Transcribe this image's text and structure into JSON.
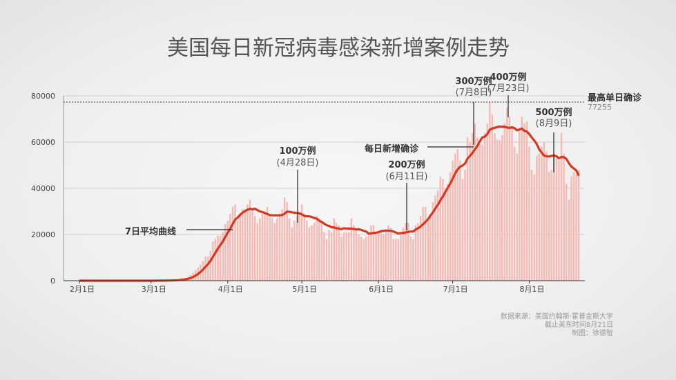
{
  "chart_data": {
    "type": "bar",
    "title": "美国每日新冠病毒感染新增案例走势",
    "start_date": "2020-02-01",
    "ylim": [
      0,
      80000
    ],
    "yticks": [
      0,
      20000,
      40000,
      60000,
      80000
    ],
    "ytick_labels": [
      "0",
      "20000",
      "40000",
      "60000",
      "80000"
    ],
    "xtick_labels": [
      "2月1日",
      "3月1日",
      "4月1日",
      "5月1日",
      "6月1日",
      "7月1日",
      "8月1日"
    ],
    "grid": true,
    "colors": {
      "bars": "#f7b9b4",
      "line": "#d7371f"
    },
    "series": [
      {
        "type": "bar",
        "values": [
          0,
          0,
          0,
          0,
          0,
          0,
          0,
          0,
          0,
          0,
          0,
          0,
          0,
          0,
          0,
          0,
          0,
          0,
          0,
          0,
          0,
          0,
          0,
          0,
          0,
          0,
          0,
          0,
          0,
          10,
          20,
          30,
          50,
          70,
          100,
          120,
          150,
          200,
          300,
          400,
          500,
          700,
          1000,
          1200,
          1800,
          2500,
          3500,
          4500,
          5800,
          7000,
          8500,
          10500,
          10500,
          13000,
          17000,
          18000,
          19500,
          19500,
          21000,
          24500,
          26000,
          29000,
          32000,
          33000,
          26000,
          29000,
          31000,
          31000,
          33000,
          35000,
          31000,
          28000,
          25000,
          27000,
          29000,
          30000,
          32000,
          28000,
          27000,
          25000,
          27000,
          29000,
          31000,
          36000,
          34000,
          27000,
          23000,
          26000,
          28000,
          30000,
          33000,
          29000,
          26000,
          23000,
          24000,
          25000,
          28000,
          27000,
          25000,
          21000,
          18000,
          22000,
          21000,
          27000,
          25000,
          24000,
          19000,
          21000,
          21000,
          21000,
          27000,
          24000,
          22000,
          20000,
          19000,
          18000,
          19000,
          21000,
          24000,
          24000,
          20000,
          21000,
          21000,
          20000,
          22000,
          24000,
          23000,
          18000,
          18000,
          18000,
          21000,
          23000,
          25000,
          25000,
          19000,
          18000,
          24000,
          25000,
          28000,
          32000,
          32000,
          27000,
          29000,
          34000,
          37000,
          39000,
          45000,
          44000,
          40000,
          42000,
          47000,
          52000,
          55000,
          57000,
          52000,
          44000,
          48000,
          62000,
          60000,
          64000,
          68000,
          62000,
          59000,
          59000,
          64000,
          68000,
          77255,
          72000,
          64000,
          61000,
          61000,
          63000,
          68000,
          75000,
          71000,
          66000,
          58000,
          55000,
          65000,
          71000,
          68000,
          69000,
          58000,
          48000,
          46000,
          54000,
          55000,
          58000,
          60000,
          56000,
          47000,
          48000,
          55000,
          53000,
          52000,
          64000,
          55000,
          42000,
          35000,
          45000,
          47000,
          46000,
          48000
        ]
      },
      {
        "type": "line",
        "name": "7日平均曲线",
        "rolling_window": 7
      }
    ],
    "reference_line": {
      "label": "最高单日确诊",
      "value": 77255,
      "value_label": "77255"
    },
    "annotations": [
      {
        "label": "7日平均曲线"
      },
      {
        "label": "100万例",
        "date": "(4月28日)"
      },
      {
        "label": "200万例",
        "date": "(6月11日)"
      },
      {
        "label": "每日新增确诊"
      },
      {
        "label": "300万例",
        "date": "(7月8日)"
      },
      {
        "label": "400万例",
        "date": "(7月23日)"
      },
      {
        "label": "500万例",
        "date": "(8月9日)"
      }
    ]
  },
  "source": {
    "line1": "数据来源：美国约翰斯·霍普金斯大学",
    "line2": "截止美东时间8月21日",
    "line3": "制图：徐德智"
  }
}
